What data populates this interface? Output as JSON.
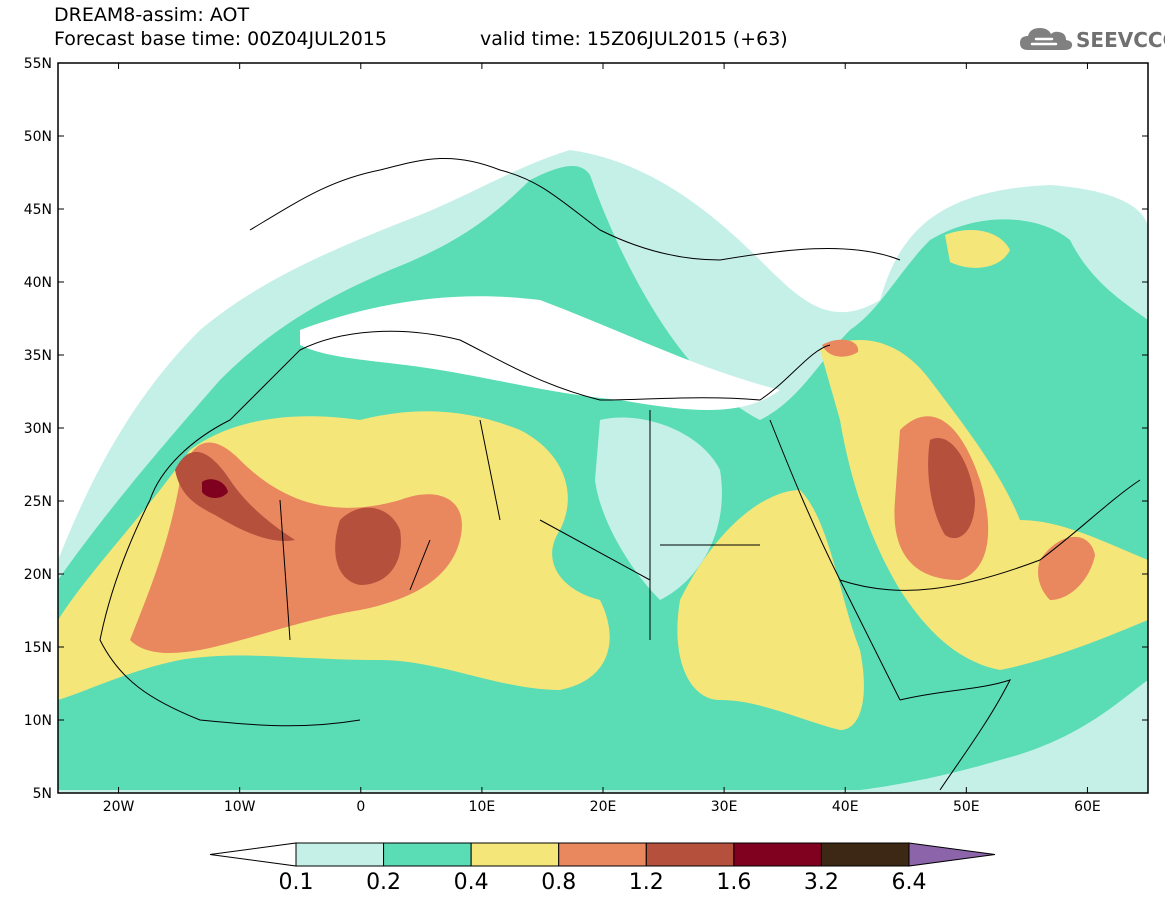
{
  "title": {
    "line1": "DREAM8-assim: AOT",
    "line2": "Forecast base time: 00Z04JUL2015",
    "line3": "valid time: 15Z06JUL2015 (+63)"
  },
  "logo": {
    "text": "SEEVCCC",
    "icon": "cloud-icon"
  },
  "map": {
    "lon_range": [
      -25,
      65
    ],
    "lat_range": [
      5,
      55
    ],
    "lat_ticks": [
      {
        "value": 55,
        "label": "55N"
      },
      {
        "value": 50,
        "label": "50N"
      },
      {
        "value": 45,
        "label": "45N"
      },
      {
        "value": 40,
        "label": "40N"
      },
      {
        "value": 35,
        "label": "35N"
      },
      {
        "value": 30,
        "label": "30N"
      },
      {
        "value": 25,
        "label": "25N"
      },
      {
        "value": 20,
        "label": "20N"
      },
      {
        "value": 15,
        "label": "15N"
      },
      {
        "value": 10,
        "label": "10N"
      },
      {
        "value": 5,
        "label": "5N"
      }
    ],
    "lon_ticks": [
      {
        "value": -20,
        "label": "20W"
      },
      {
        "value": -10,
        "label": "10W"
      },
      {
        "value": 0,
        "label": "0"
      },
      {
        "value": 10,
        "label": "10E"
      },
      {
        "value": 20,
        "label": "20E"
      },
      {
        "value": 30,
        "label": "30E"
      },
      {
        "value": 40,
        "label": "40E"
      },
      {
        "value": 50,
        "label": "50E"
      },
      {
        "value": 60,
        "label": "60E"
      }
    ]
  },
  "colorbar": {
    "colors": [
      "#ffffff",
      "#c5f0e8",
      "#5adcb4",
      "#f5e67a",
      "#e9875f",
      "#b4503c",
      "#800020",
      "#3c2814",
      "#8c64aa"
    ],
    "labels": [
      "0.1",
      "0.2",
      "0.4",
      "0.8",
      "1.2",
      "1.6",
      "3.2",
      "6.4"
    ]
  }
}
